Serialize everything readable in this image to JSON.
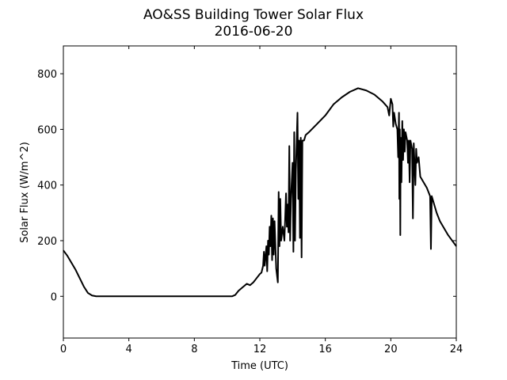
{
  "chart_data": {
    "type": "line",
    "title": "AO&SS Building Tower Solar Flux",
    "subtitle": "2016-06-20",
    "xlabel": "Time (UTC)",
    "ylabel": "Solar Flux (W/m^2)",
    "color": "#000000",
    "xlim": [
      0,
      24
    ],
    "xticks": [
      0,
      4,
      8,
      12,
      16,
      20,
      24
    ],
    "ylim": [
      -150,
      900
    ],
    "yticks": [
      0,
      200,
      400,
      600,
      800
    ],
    "x": [
      0,
      0.25,
      0.5,
      0.75,
      1.0,
      1.25,
      1.5,
      1.75,
      2.0,
      4,
      8,
      10.3,
      10.5,
      10.7,
      11.0,
      11.2,
      11.4,
      11.6,
      11.8,
      12.0,
      12.1,
      12.2,
      12.25,
      12.3,
      12.4,
      12.45,
      12.5,
      12.55,
      12.6,
      12.65,
      12.7,
      12.75,
      12.8,
      12.85,
      12.9,
      13.0,
      13.1,
      13.15,
      13.2,
      13.25,
      13.3,
      13.4,
      13.5,
      13.6,
      13.65,
      13.7,
      13.75,
      13.8,
      13.85,
      13.9,
      14.0,
      14.05,
      14.1,
      14.15,
      14.2,
      14.3,
      14.35,
      14.4,
      14.45,
      14.5,
      14.55,
      14.6,
      14.7,
      14.8,
      15.0,
      15.5,
      16,
      16.5,
      17,
      17.5,
      18,
      18.5,
      19,
      19.5,
      19.8,
      19.9,
      20.0,
      20.1,
      20.15,
      20.2,
      20.3,
      20.4,
      20.45,
      20.5,
      20.52,
      20.55,
      20.58,
      20.6,
      20.65,
      20.7,
      20.75,
      20.8,
      20.85,
      20.9,
      21.0,
      21.05,
      21.1,
      21.15,
      21.2,
      21.3,
      21.35,
      21.4,
      21.5,
      21.55,
      21.6,
      21.7,
      21.8,
      22.0,
      22.2,
      22.4,
      22.45,
      22.5,
      22.8,
      23,
      23.5,
      24
    ],
    "values": [
      165,
      145,
      120,
      95,
      65,
      35,
      12,
      3,
      0,
      0,
      0,
      0,
      5,
      20,
      35,
      45,
      40,
      50,
      65,
      80,
      85,
      110,
      160,
      110,
      180,
      90,
      200,
      150,
      250,
      180,
      290,
      130,
      280,
      150,
      270,
      100,
      50,
      375,
      180,
      350,
      200,
      250,
      200,
      370,
      250,
      330,
      230,
      540,
      200,
      350,
      480,
      160,
      590,
      200,
      450,
      660,
      350,
      560,
      210,
      570,
      140,
      560,
      560,
      580,
      590,
      620,
      650,
      690,
      715,
      735,
      748,
      740,
      725,
      700,
      680,
      650,
      710,
      690,
      610,
      660,
      620,
      600,
      500,
      660,
      350,
      600,
      220,
      570,
      410,
      630,
      490,
      600,
      520,
      590,
      560,
      480,
      560,
      410,
      560,
      530,
      280,
      550,
      400,
      530,
      480,
      500,
      430,
      410,
      390,
      360,
      170,
      360,
      300,
      270,
      220,
      180
    ]
  }
}
